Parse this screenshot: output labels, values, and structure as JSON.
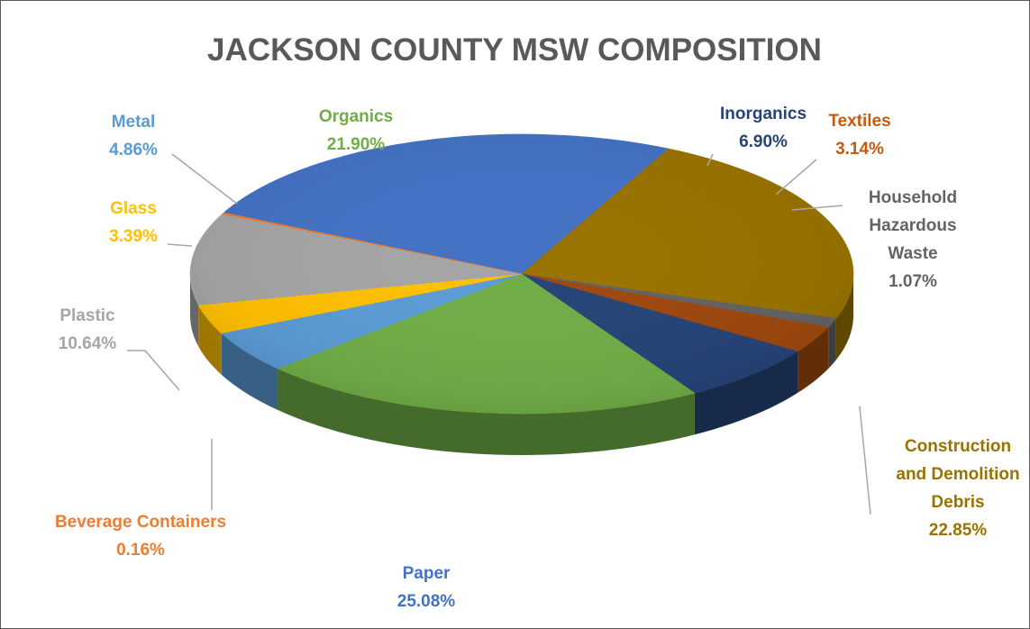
{
  "chart_data": {
    "type": "pie",
    "title": "JACKSON COUNTY MSW COMPOSITION",
    "slices": [
      {
        "label_lines": [
          "Paper"
        ],
        "value": 25.08,
        "value_text": "25.08%",
        "color": "#4472c4",
        "label_color": "#4472c4"
      },
      {
        "label_lines": [
          "Construction",
          "and Demolition",
          "Debris"
        ],
        "value": 22.85,
        "value_text": "22.85%",
        "color": "#997300",
        "label_color": "#997300"
      },
      {
        "label_lines": [
          "Household",
          "Hazardous",
          "Waste"
        ],
        "value": 1.07,
        "value_text": "1.07%",
        "color": "#636363",
        "label_color": "#636363"
      },
      {
        "label_lines": [
          "Textiles"
        ],
        "value": 3.14,
        "value_text": "3.14%",
        "color": "#9e480e",
        "label_color": "#c55a11"
      },
      {
        "label_lines": [
          "Inorganics"
        ],
        "value": 6.9,
        "value_text": "6.90%",
        "color": "#264478",
        "label_color": "#264478"
      },
      {
        "label_lines": [
          "Organics"
        ],
        "value": 21.9,
        "value_text": "21.90%",
        "color": "#70ad47",
        "label_color": "#70ad47"
      },
      {
        "label_lines": [
          "Metal"
        ],
        "value": 4.86,
        "value_text": "4.86%",
        "color": "#5b9bd5",
        "label_color": "#5b9bd5"
      },
      {
        "label_lines": [
          "Glass"
        ],
        "value": 3.39,
        "value_text": "3.39%",
        "color": "#ffc000",
        "label_color": "#ffc000"
      },
      {
        "label_lines": [
          "Plastic"
        ],
        "value": 10.64,
        "value_text": "10.64%",
        "color": "#a5a5a5",
        "label_color": "#a5a5a5"
      },
      {
        "label_lines": [
          "Beverage Containers"
        ],
        "value": 0.16,
        "value_text": "0.16%",
        "color": "#ed7d31",
        "label_color": "#ed7d31"
      }
    ],
    "style": "3d-pie"
  }
}
